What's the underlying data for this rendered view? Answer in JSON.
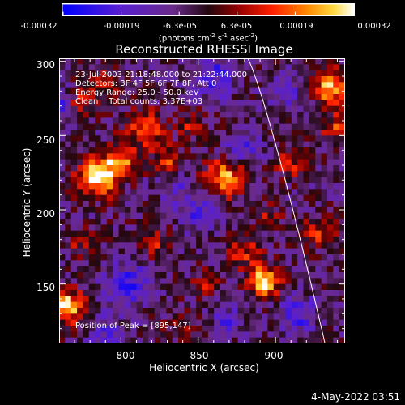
{
  "colorbar": {
    "tick_labels": [
      "-0.00032",
      "-0.00019",
      "-6.3e-05",
      "6.3e-05",
      "0.00019",
      "0.00032"
    ],
    "range": [
      -0.00032,
      0.00032
    ],
    "units_prefix": "(photons cm",
    "units_sup1": "-2",
    "units_mid": " s",
    "units_sup2": "-1",
    "units_mid2": " asec",
    "units_sup3": "-2",
    "units_suffix": ")",
    "colors": [
      "#0000ff",
      "#5a20c8",
      "#6a2a8a",
      "#2a0a1a",
      "#8a0000",
      "#ff2000",
      "#ff8000",
      "#ffd040",
      "#ffffff"
    ]
  },
  "chart_data": {
    "type": "heatmap",
    "title": "Reconstructed RHESSI Image",
    "xlabel": "Heliocentric X (arcsec)",
    "ylabel": "Heliocentric Y (arcsec)",
    "xlim": [
      760,
      945
    ],
    "ylim": [
      110,
      302
    ],
    "x_ticks": [
      "800",
      "850",
      "900"
    ],
    "y_ticks": [
      "150",
      "200",
      "250",
      "300"
    ],
    "annotations": [
      "23-Jul-2003 21:18:48.000 to 21:22:44.000",
      "Detectors: 3F 4F 5F 6F 7F 8F, Att 0",
      "Energy Range: 25.0 - 50.0 keV",
      "Clean    Total counts: 3.37E+03"
    ],
    "peak_label": "Position of Peak = [895,147]",
    "peak_position": [
      895,
      147
    ],
    "limb_color": "#ffffff"
  },
  "footer": {
    "timestamp": "4-May-2022 03:51"
  }
}
